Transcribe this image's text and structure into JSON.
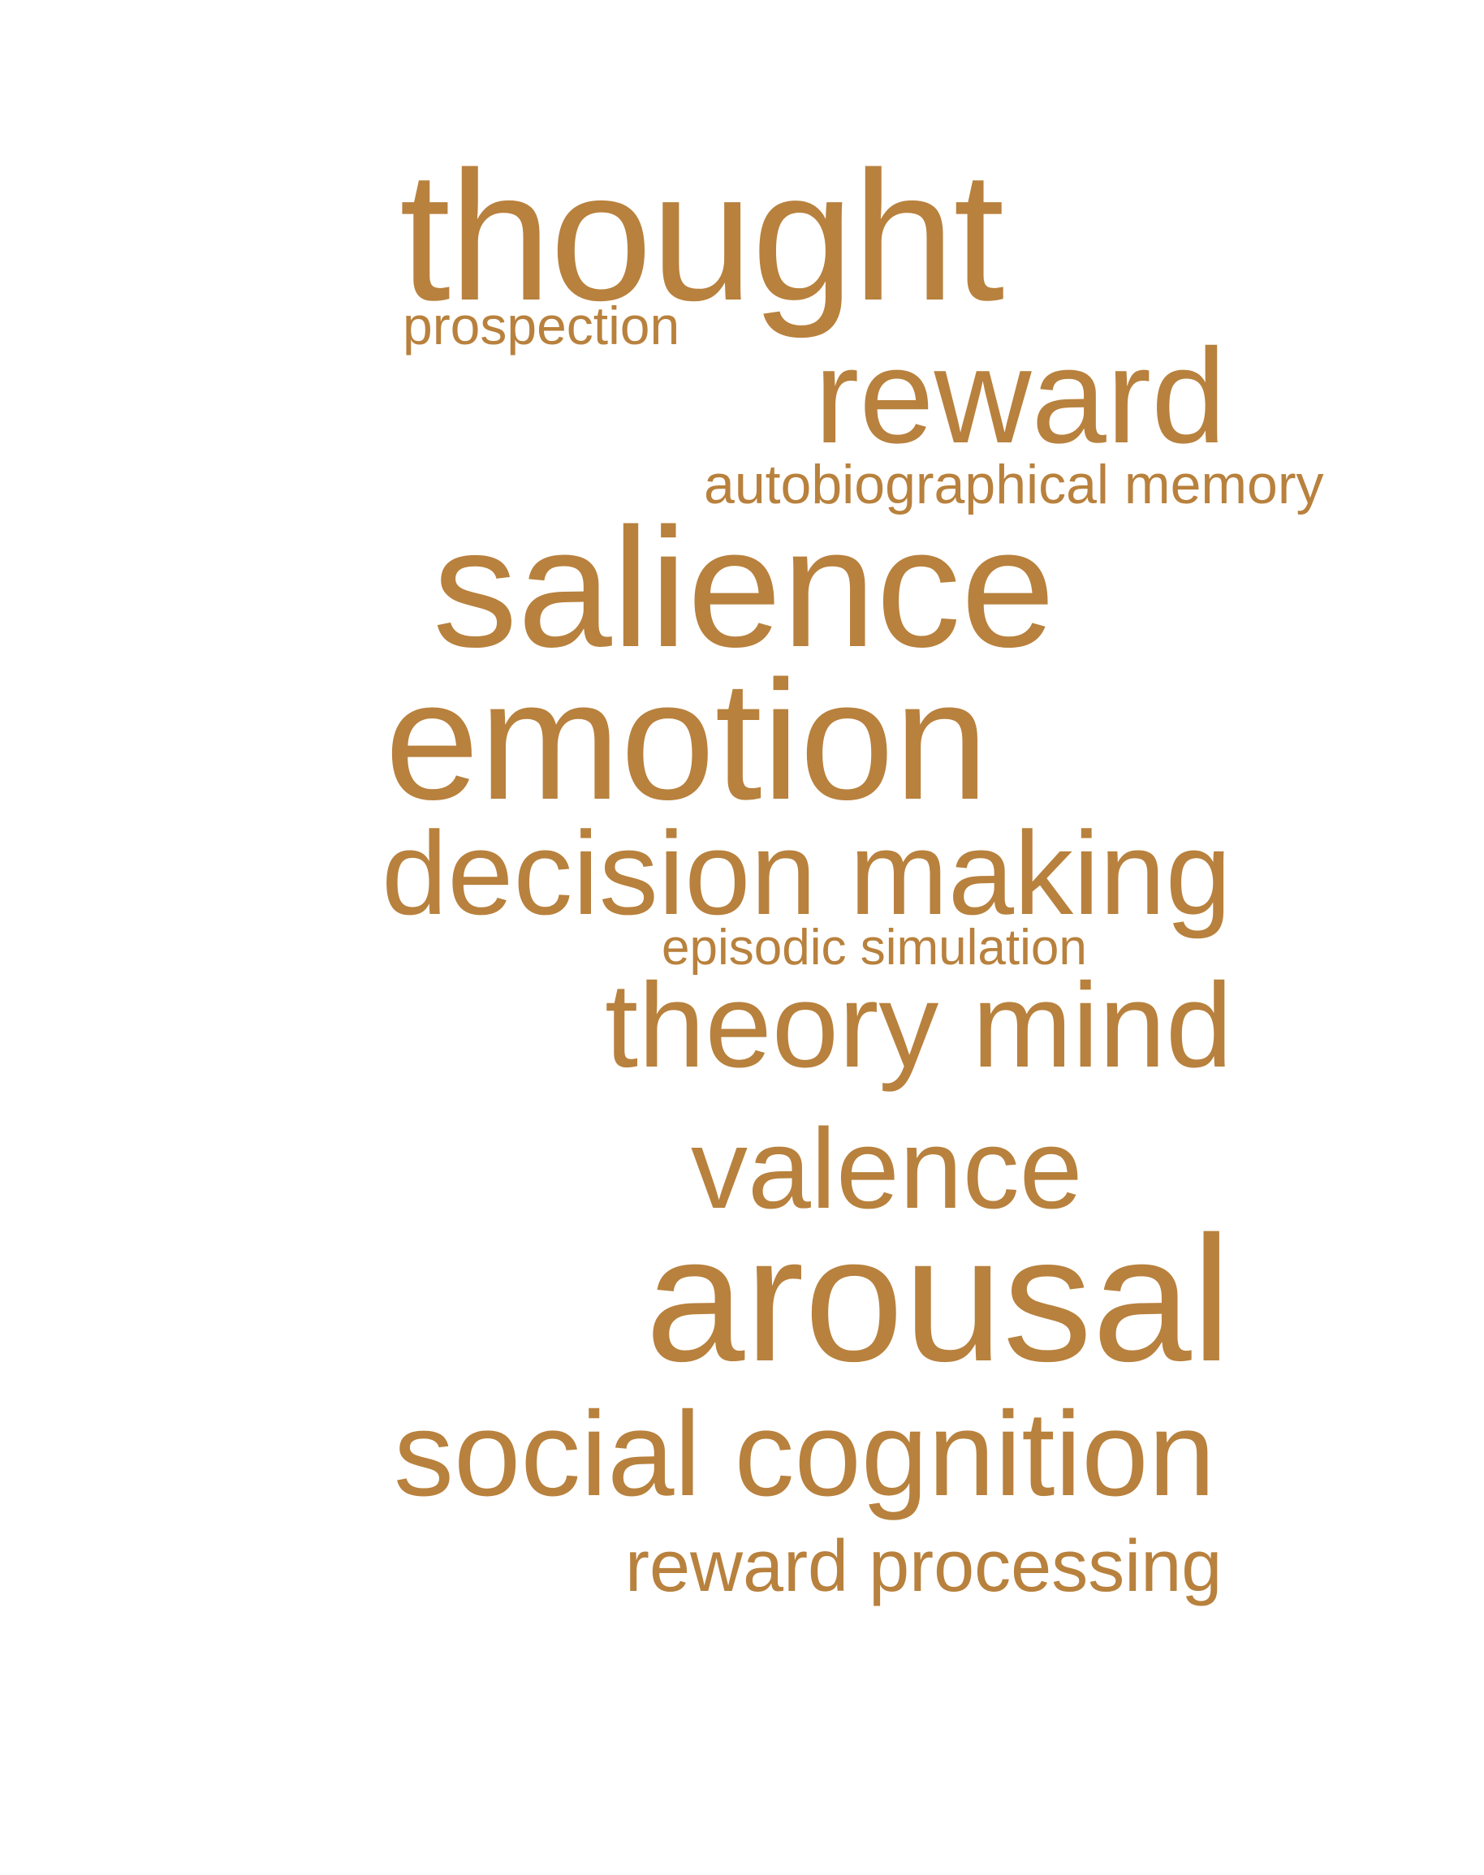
{
  "colors": {
    "background": "#ffffff",
    "word": "#b8813d"
  },
  "words": {
    "thought": "thought",
    "prospection": "prospection",
    "reward": "reward",
    "autobiographical_memory": "autobiographical memory",
    "salience": "salience",
    "emotion": "emotion",
    "decision_making": "decision making",
    "episodic_simulation": "episodic simulation",
    "theory_mind": "theory mind",
    "valence": "valence",
    "arousal": "arousal",
    "social_cognition": "social cognition",
    "reward_processing": "reward processing"
  }
}
